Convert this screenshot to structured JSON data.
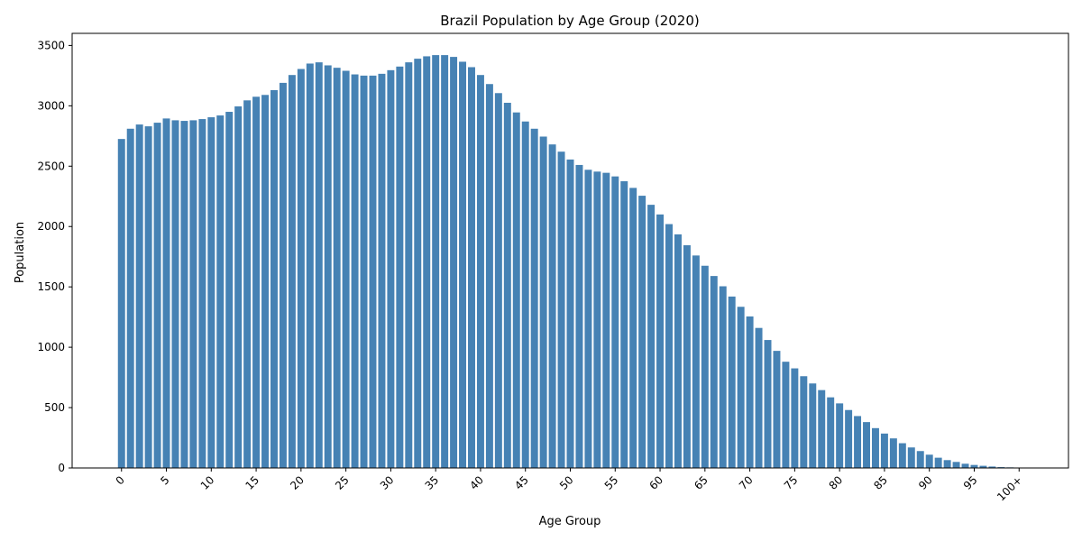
{
  "chart_data": {
    "type": "bar",
    "title": "Brazil Population by Age Group (2020)",
    "xlabel": "Age Group",
    "ylabel": "Population",
    "ylim": [
      0,
      3600
    ],
    "xlim": [
      -5.5,
      105.5
    ],
    "yticks": [
      0,
      500,
      1000,
      1500,
      2000,
      2500,
      3000,
      3500
    ],
    "xticks": [
      {
        "x": 0,
        "label": "0"
      },
      {
        "x": 5,
        "label": "5"
      },
      {
        "x": 10,
        "label": "10"
      },
      {
        "x": 15,
        "label": "15"
      },
      {
        "x": 20,
        "label": "20"
      },
      {
        "x": 25,
        "label": "25"
      },
      {
        "x": 30,
        "label": "30"
      },
      {
        "x": 35,
        "label": "35"
      },
      {
        "x": 40,
        "label": "40"
      },
      {
        "x": 45,
        "label": "45"
      },
      {
        "x": 50,
        "label": "50"
      },
      {
        "x": 55,
        "label": "55"
      },
      {
        "x": 60,
        "label": "60"
      },
      {
        "x": 65,
        "label": "65"
      },
      {
        "x": 70,
        "label": "70"
      },
      {
        "x": 75,
        "label": "75"
      },
      {
        "x": 80,
        "label": "80"
      },
      {
        "x": 85,
        "label": "85"
      },
      {
        "x": 90,
        "label": "90"
      },
      {
        "x": 95,
        "label": "95"
      },
      {
        "x": 100,
        "label": "100+"
      }
    ],
    "bar_color": "#4682b4",
    "grid": false,
    "values": [
      2725,
      2810,
      2845,
      2830,
      2860,
      2895,
      2880,
      2875,
      2880,
      2890,
      2905,
      2920,
      2950,
      2995,
      3045,
      3075,
      3090,
      3130,
      3190,
      3255,
      3305,
      3350,
      3360,
      3335,
      3315,
      3290,
      3260,
      3250,
      3250,
      3265,
      3295,
      3325,
      3360,
      3390,
      3410,
      3420,
      3420,
      3405,
      3365,
      3320,
      3255,
      3180,
      3105,
      3025,
      2945,
      2870,
      2810,
      2745,
      2680,
      2620,
      2555,
      2510,
      2470,
      2455,
      2445,
      2415,
      2375,
      2320,
      2255,
      2180,
      2100,
      2020,
      1935,
      1845,
      1760,
      1675,
      1590,
      1505,
      1420,
      1335,
      1255,
      1160,
      1060,
      970,
      880,
      825,
      760,
      700,
      645,
      585,
      535,
      480,
      430,
      380,
      330,
      285,
      245,
      205,
      170,
      140,
      110,
      85,
      65,
      50,
      35,
      25,
      18,
      12,
      7,
      5,
      3
    ]
  }
}
